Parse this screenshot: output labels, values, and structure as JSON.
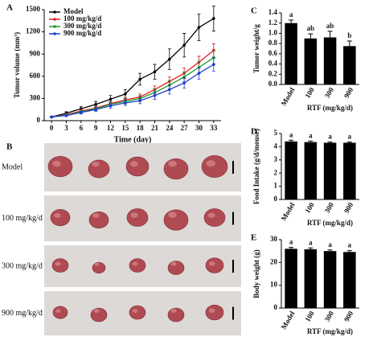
{
  "chart_data": [
    {
      "type": "line",
      "panel_label": "A",
      "x_label": "Time (day)",
      "y_label": "Tumor volume (mm³)",
      "x": [
        0,
        3,
        6,
        9,
        12,
        15,
        18,
        21,
        24,
        27,
        30,
        33
      ],
      "xlim": [
        -1.5,
        34.5
      ],
      "xticks": [
        0,
        3,
        6,
        9,
        12,
        15,
        18,
        21,
        24,
        27,
        30,
        33
      ],
      "ylim": [
        0,
        1500
      ],
      "yticks": [
        0,
        300,
        600,
        900,
        1200,
        1500
      ],
      "legend": "upper left",
      "series": [
        {
          "name": "Model",
          "color": "#000000",
          "values": [
            50,
            100,
            160,
            220,
            290,
            360,
            560,
            660,
            830,
            1020,
            1260,
            1380
          ],
          "errors": [
            10,
            20,
            30,
            40,
            50,
            60,
            80,
            100,
            140,
            160,
            180,
            170
          ]
        },
        {
          "name": "100 mg/kg/d",
          "color": "#e41a1c",
          "values": [
            50,
            80,
            130,
            170,
            230,
            280,
            320,
            420,
            530,
            640,
            790,
            950
          ],
          "errors": [
            8,
            15,
            20,
            25,
            30,
            35,
            40,
            50,
            60,
            70,
            80,
            90
          ]
        },
        {
          "name": "300 mg/kg/d",
          "color": "#1a9a2a",
          "values": [
            50,
            75,
            120,
            160,
            220,
            260,
            300,
            380,
            480,
            590,
            720,
            850
          ],
          "errors": [
            8,
            15,
            20,
            25,
            30,
            35,
            40,
            50,
            60,
            70,
            80,
            90
          ]
        },
        {
          "name": "900 mg/kg/d",
          "color": "#1f3fcf",
          "values": [
            50,
            70,
            110,
            150,
            200,
            240,
            270,
            340,
            420,
            510,
            640,
            760
          ],
          "errors": [
            8,
            15,
            20,
            25,
            30,
            35,
            40,
            50,
            60,
            70,
            80,
            90
          ]
        }
      ]
    },
    {
      "type": "bar",
      "panel_label": "C",
      "y_label": "Tumor weight/g",
      "x_label": "RTF (mg/kg/d)",
      "categories": [
        "Model",
        "100",
        "300",
        "900"
      ],
      "values": [
        1.2,
        0.9,
        0.92,
        0.75
      ],
      "errors": [
        0.06,
        0.09,
        0.12,
        0.1
      ],
      "annotations": [
        "a",
        "ab",
        "ab",
        "b"
      ],
      "color": "#000000",
      "ylim": [
        0,
        1.4
      ],
      "yticks": [
        {
          "value": 0,
          "label": "0.0"
        },
        0.2,
        0.4,
        0.6,
        0.8,
        {
          "value": 1,
          "label": "1.0"
        },
        1.2,
        1.4
      ]
    },
    {
      "type": "bar",
      "panel_label": "D",
      "y_label": "Food Intake (g/d/mouse)",
      "x_label": "RTF (mg/kg/d)",
      "categories": [
        "Model",
        "100",
        "300",
        "900"
      ],
      "values": [
        4.4,
        4.35,
        4.3,
        4.3
      ],
      "errors": [
        0.1,
        0.08,
        0.05,
        0.05
      ],
      "annotations": [
        "a",
        "a",
        "a",
        "a"
      ],
      "color": "#000000",
      "ylim": [
        0,
        5
      ],
      "yticks": [
        0,
        1,
        2,
        3,
        4,
        5
      ]
    },
    {
      "type": "bar",
      "panel_label": "E",
      "y_label": "Body weight (g)",
      "x_label": "RTF (mg/kg/d)",
      "categories": [
        "Model",
        "100",
        "300",
        "900"
      ],
      "values": [
        26,
        25.8,
        25,
        24.6
      ],
      "errors": [
        0.6,
        0.6,
        0.5,
        0.6
      ],
      "annotations": [
        "a",
        "a",
        "a",
        "a"
      ],
      "color": "#000000",
      "ylim": [
        0,
        30
      ],
      "yticks": [
        0,
        10,
        20,
        30
      ]
    }
  ],
  "photo_panel": {
    "panel_label": "B",
    "rows": [
      "Model",
      "100 mg/kg/d",
      "300 mg/kg/d",
      "900 mg/kg/d"
    ]
  }
}
